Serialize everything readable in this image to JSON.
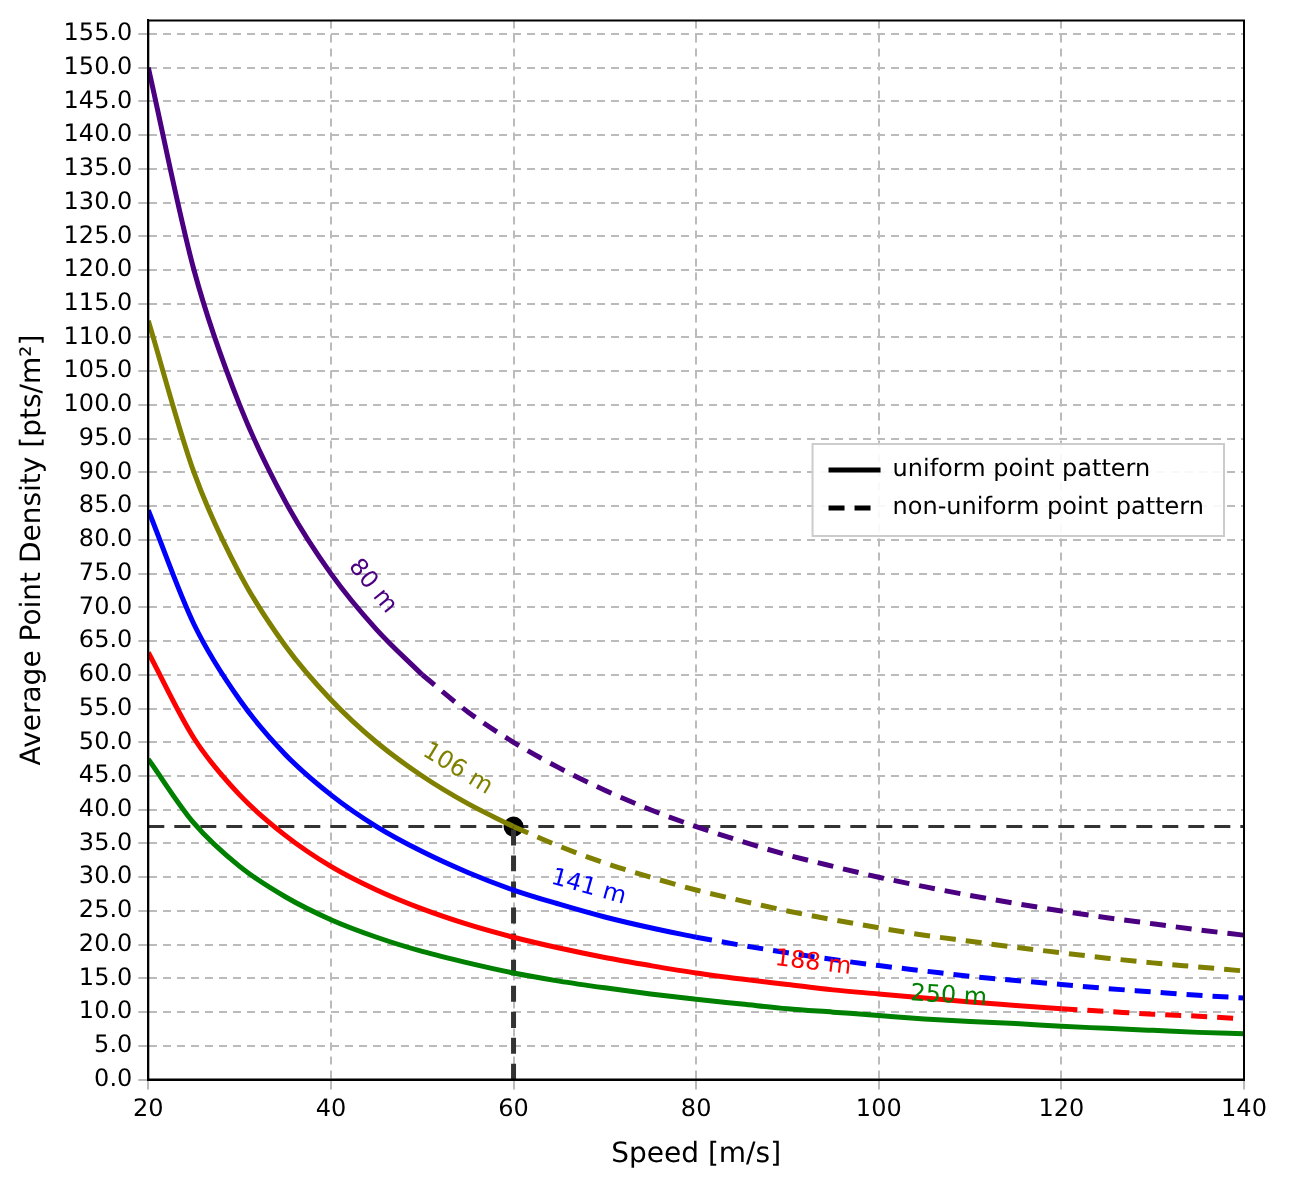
{
  "chart_data": {
    "type": "line",
    "xlabel": "Speed [m/s]",
    "ylabel": "Average Point Density [pts/m²]",
    "xlim": [
      20,
      140
    ],
    "xticks": [
      20,
      40,
      60,
      80,
      100,
      120,
      140
    ],
    "ylim": [
      0,
      157
    ],
    "yticks": [
      {
        "value": 0,
        "label": "0.0"
      },
      {
        "value": 5,
        "label": "5.0"
      },
      {
        "value": 10,
        "label": "10.0"
      },
      {
        "value": 15,
        "label": "15.0"
      },
      {
        "value": 20,
        "label": "20.0"
      },
      {
        "value": 25,
        "label": "25.0"
      },
      {
        "value": 30,
        "label": "30.0"
      },
      {
        "value": 35,
        "label": "35.0"
      },
      {
        "value": 40,
        "label": "40.0"
      },
      {
        "value": 45,
        "label": "45.0"
      },
      {
        "value": 50,
        "label": "50.0"
      },
      {
        "value": 55,
        "label": "55.0"
      },
      {
        "value": 60,
        "label": "60.0"
      },
      {
        "value": 65,
        "label": "65.0"
      },
      {
        "value": 70,
        "label": "70.0"
      },
      {
        "value": 75,
        "label": "75.0"
      },
      {
        "value": 80,
        "label": "80.0"
      },
      {
        "value": 85,
        "label": "85.0"
      },
      {
        "value": 90,
        "label": "90.0"
      },
      {
        "value": 95,
        "label": "95.0"
      },
      {
        "value": 100,
        "label": "100.0"
      },
      {
        "value": 105,
        "label": "105.0"
      },
      {
        "value": 110,
        "label": "110.0"
      },
      {
        "value": 115,
        "label": "115.0"
      },
      {
        "value": 120,
        "label": "120.0"
      },
      {
        "value": 125,
        "label": "125.0"
      },
      {
        "value": 130,
        "label": "130.0"
      },
      {
        "value": 135,
        "label": "135.0"
      },
      {
        "value": 140,
        "label": "140.0"
      },
      {
        "value": 145,
        "label": "145.0"
      },
      {
        "value": 150,
        "label": "150.0"
      },
      {
        "value": 155,
        "label": "155.0"
      }
    ],
    "grid": true,
    "legend": "right",
    "marker": "none",
    "ref_lines": [
      {
        "axis": "y",
        "value": 37.5,
        "color": "#333333",
        "line_style": "dashed"
      }
    ],
    "series": [
      {
        "name": "uniform point pattern",
        "color": "#000000",
        "line_style": "solid"
      },
      {
        "name": "non-uniform point pattern",
        "color": "#000000",
        "line_style": "dashed"
      },
      {
        "name": "80 m",
        "color": "#4b0082",
        "line_style": "solid",
        "x": [
          20,
          25,
          30,
          35,
          40,
          45,
          50
        ],
        "values": [
          150,
          120,
          100,
          85.7,
          75,
          66.7,
          60
        ]
      },
      {
        "color": "#4b0082",
        "line_style": "dashed",
        "x": [
          50,
          55,
          60,
          65,
          70,
          75,
          80,
          85,
          90,
          95,
          100,
          105,
          110,
          115,
          120,
          125,
          130,
          135,
          140
        ],
        "values": [
          60,
          54.5,
          50,
          46.2,
          42.9,
          40,
          37.5,
          35.3,
          33.3,
          31.6,
          30,
          28.6,
          27.3,
          26.1,
          25,
          24,
          23.1,
          22.2,
          21.4
        ]
      },
      {
        "name": "106 m",
        "color": "#808000",
        "line_style": "solid",
        "x": [
          20,
          25,
          30,
          35,
          40,
          45,
          50,
          55,
          60
        ],
        "values": [
          112.5,
          90,
          75,
          64.3,
          56.3,
          50,
          45,
          40.9,
          37.5
        ]
      },
      {
        "color": "#808000",
        "line_style": "dashed",
        "x": [
          60,
          65,
          70,
          75,
          80,
          85,
          90,
          95,
          100,
          105,
          110,
          115,
          120,
          125,
          130,
          135,
          140
        ],
        "values": [
          37.5,
          34.6,
          32.1,
          30,
          28.1,
          26.5,
          25,
          23.7,
          22.5,
          21.4,
          20.5,
          19.6,
          18.8,
          18,
          17.3,
          16.7,
          16.1
        ]
      },
      {
        "name": "141 m",
        "color": "#0000ff",
        "line_style": "solid",
        "x": [
          20,
          25,
          30,
          35,
          40,
          45,
          50,
          55,
          60,
          65,
          70,
          75,
          80
        ],
        "values": [
          84.4,
          67.5,
          56.3,
          48.2,
          42.2,
          37.5,
          33.8,
          30.7,
          28.1,
          26,
          24.1,
          22.5,
          21.1
        ]
      },
      {
        "color": "#0000ff",
        "line_style": "dashed",
        "x": [
          80,
          85,
          90,
          95,
          100,
          105,
          110,
          115,
          120,
          125,
          130,
          135,
          140
        ],
        "values": [
          21.1,
          19.9,
          18.8,
          17.8,
          16.9,
          16.1,
          15.3,
          14.7,
          14.1,
          13.5,
          13,
          12.5,
          12.1
        ]
      },
      {
        "name": "188 m",
        "color": "#ff0000",
        "line_style": "solid",
        "x": [
          20,
          25,
          30,
          35,
          40,
          45,
          50,
          55,
          60,
          65,
          70,
          75,
          80,
          85,
          90,
          95,
          100,
          105,
          110,
          115,
          120
        ],
        "values": [
          63.3,
          50.6,
          42.2,
          36.2,
          31.6,
          28.1,
          25.3,
          23,
          21.1,
          19.5,
          18.1,
          16.9,
          15.8,
          14.9,
          14.1,
          13.3,
          12.7,
          12.1,
          11.5,
          11,
          10.5
        ]
      },
      {
        "color": "#ff0000",
        "line_style": "dashed",
        "x": [
          120,
          125,
          130,
          135,
          140
        ],
        "values": [
          10.5,
          10.1,
          9.7,
          9.4,
          9
        ]
      },
      {
        "name": "250 m",
        "color": "#008000",
        "line_style": "solid",
        "x": [
          20,
          25,
          30,
          35,
          40,
          45,
          50,
          55,
          60,
          65,
          70,
          75,
          80,
          85,
          90,
          95,
          100,
          105,
          110,
          115,
          120,
          125,
          130,
          135,
          140
        ],
        "values": [
          47.5,
          38,
          31.6,
          27.1,
          23.7,
          21.1,
          19,
          17.3,
          15.8,
          14.6,
          13.6,
          12.7,
          11.9,
          11.2,
          10.5,
          10,
          9.5,
          9,
          8.6,
          8.3,
          7.9,
          7.6,
          7.3,
          7,
          6.8
        ]
      },
      {
        "color": "#333333",
        "line_style": "dashed",
        "x": [
          60,
          60
        ],
        "values": [
          0,
          37.5
        ]
      },
      {
        "type": "scatter",
        "color": "#000000",
        "marker": "circle",
        "x": [
          60
        ],
        "values": [
          37.5
        ]
      }
    ]
  }
}
